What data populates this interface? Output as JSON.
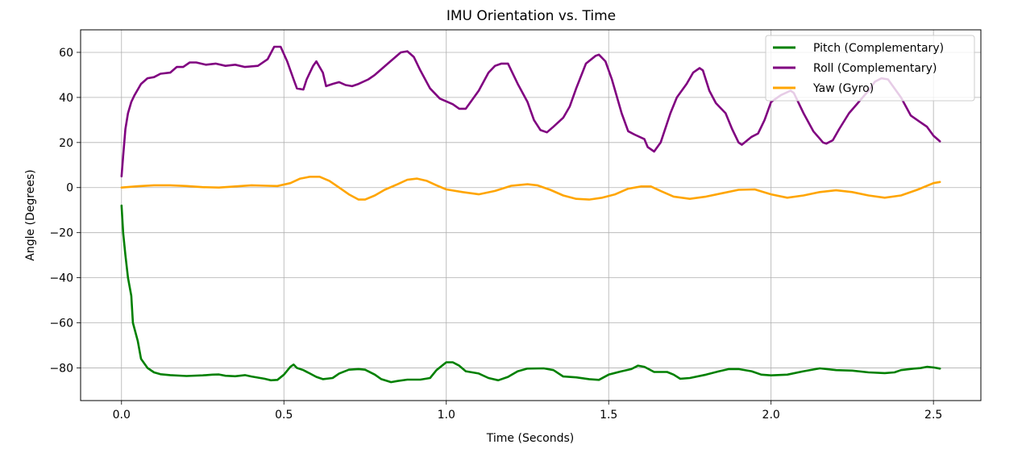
{
  "chart_data": {
    "type": "line",
    "title": "IMU Orientation vs. Time",
    "xlabel": "Time (Seconds)",
    "ylabel": "Angle (Degrees)",
    "xlim": [
      -0.126,
      2.646
    ],
    "ylim": [
      -94.5,
      70
    ],
    "xticks": [
      0.0,
      0.5,
      1.0,
      1.5,
      2.0,
      2.5
    ],
    "xtick_labels": [
      "0.0",
      "0.5",
      "1.0",
      "1.5",
      "2.0",
      "2.5"
    ],
    "yticks": [
      -80,
      -60,
      -40,
      -20,
      0,
      20,
      40,
      60
    ],
    "ytick_labels": [
      "−80",
      "−60",
      "−40",
      "−20",
      "0",
      "20",
      "40",
      "60"
    ],
    "grid": true,
    "legend_position": "top-right",
    "series": [
      {
        "name": "Pitch (Complementary)",
        "color": "#008000",
        "points": [
          [
            0.0,
            -8
          ],
          [
            0.005,
            -20
          ],
          [
            0.012,
            -30
          ],
          [
            0.02,
            -40
          ],
          [
            0.03,
            -48
          ],
          [
            0.035,
            -60
          ],
          [
            0.05,
            -68
          ],
          [
            0.06,
            -76
          ],
          [
            0.08,
            -80
          ],
          [
            0.1,
            -82
          ],
          [
            0.12,
            -82.8
          ],
          [
            0.15,
            -83.2
          ],
          [
            0.2,
            -83.6
          ],
          [
            0.25,
            -83.3
          ],
          [
            0.28,
            -83
          ],
          [
            0.3,
            -82.9
          ],
          [
            0.32,
            -83.5
          ],
          [
            0.35,
            -83.7
          ],
          [
            0.38,
            -83.2
          ],
          [
            0.4,
            -83.8
          ],
          [
            0.42,
            -84.3
          ],
          [
            0.44,
            -84.8
          ],
          [
            0.46,
            -85.5
          ],
          [
            0.48,
            -85.3
          ],
          [
            0.5,
            -83
          ],
          [
            0.52,
            -79.5
          ],
          [
            0.53,
            -78.5
          ],
          [
            0.54,
            -80
          ],
          [
            0.56,
            -81
          ],
          [
            0.58,
            -82.5
          ],
          [
            0.6,
            -84
          ],
          [
            0.62,
            -85
          ],
          [
            0.65,
            -84.5
          ],
          [
            0.67,
            -82.5
          ],
          [
            0.7,
            -80.8
          ],
          [
            0.73,
            -80.5
          ],
          [
            0.75,
            -80.8
          ],
          [
            0.78,
            -83
          ],
          [
            0.8,
            -85
          ],
          [
            0.83,
            -86.3
          ],
          [
            0.85,
            -85.8
          ],
          [
            0.88,
            -85.2
          ],
          [
            0.92,
            -85.2
          ],
          [
            0.95,
            -84.5
          ],
          [
            0.97,
            -81
          ],
          [
            1.0,
            -77.5
          ],
          [
            1.02,
            -77.5
          ],
          [
            1.04,
            -79
          ],
          [
            1.06,
            -81.5
          ],
          [
            1.1,
            -82.5
          ],
          [
            1.13,
            -84.5
          ],
          [
            1.16,
            -85.5
          ],
          [
            1.19,
            -84
          ],
          [
            1.22,
            -81.5
          ],
          [
            1.25,
            -80.3
          ],
          [
            1.3,
            -80.2
          ],
          [
            1.33,
            -81
          ],
          [
            1.36,
            -83.8
          ],
          [
            1.4,
            -84.2
          ],
          [
            1.44,
            -85
          ],
          [
            1.47,
            -85.3
          ],
          [
            1.5,
            -83
          ],
          [
            1.54,
            -81.5
          ],
          [
            1.57,
            -80.5
          ],
          [
            1.59,
            -79
          ],
          [
            1.61,
            -79.5
          ],
          [
            1.64,
            -81.8
          ],
          [
            1.68,
            -81.8
          ],
          [
            1.7,
            -83
          ],
          [
            1.72,
            -84.8
          ],
          [
            1.75,
            -84.5
          ],
          [
            1.8,
            -83
          ],
          [
            1.84,
            -81.5
          ],
          [
            1.87,
            -80.5
          ],
          [
            1.9,
            -80.5
          ],
          [
            1.94,
            -81.5
          ],
          [
            1.97,
            -83
          ],
          [
            2.0,
            -83.3
          ],
          [
            2.05,
            -83
          ],
          [
            2.1,
            -81.5
          ],
          [
            2.15,
            -80.2
          ],
          [
            2.2,
            -81
          ],
          [
            2.25,
            -81.2
          ],
          [
            2.3,
            -82
          ],
          [
            2.35,
            -82.3
          ],
          [
            2.38,
            -82
          ],
          [
            2.4,
            -81
          ],
          [
            2.44,
            -80.3
          ],
          [
            2.46,
            -80.1
          ],
          [
            2.48,
            -79.5
          ],
          [
            2.5,
            -79.8
          ],
          [
            2.52,
            -80.3
          ]
        ]
      },
      {
        "name": "Roll (Complementary)",
        "color": "#800080",
        "points": [
          [
            0.0,
            5
          ],
          [
            0.005,
            14
          ],
          [
            0.012,
            26
          ],
          [
            0.02,
            33
          ],
          [
            0.03,
            38
          ],
          [
            0.04,
            41
          ],
          [
            0.06,
            46
          ],
          [
            0.08,
            48.5
          ],
          [
            0.1,
            49
          ],
          [
            0.12,
            50.5
          ],
          [
            0.15,
            51
          ],
          [
            0.17,
            53.5
          ],
          [
            0.19,
            53.5
          ],
          [
            0.21,
            55.5
          ],
          [
            0.23,
            55.5
          ],
          [
            0.26,
            54.5
          ],
          [
            0.29,
            55
          ],
          [
            0.32,
            54
          ],
          [
            0.35,
            54.5
          ],
          [
            0.38,
            53.5
          ],
          [
            0.42,
            54
          ],
          [
            0.45,
            57
          ],
          [
            0.47,
            62.5
          ],
          [
            0.49,
            62.5
          ],
          [
            0.51,
            56
          ],
          [
            0.53,
            48
          ],
          [
            0.54,
            44
          ],
          [
            0.56,
            43.5
          ],
          [
            0.57,
            48
          ],
          [
            0.59,
            54
          ],
          [
            0.6,
            56
          ],
          [
            0.62,
            51
          ],
          [
            0.63,
            45
          ],
          [
            0.65,
            46
          ],
          [
            0.67,
            46.8
          ],
          [
            0.69,
            45.5
          ],
          [
            0.71,
            45
          ],
          [
            0.73,
            46
          ],
          [
            0.76,
            48
          ],
          [
            0.78,
            50
          ],
          [
            0.82,
            55
          ],
          [
            0.86,
            60
          ],
          [
            0.88,
            60.5
          ],
          [
            0.9,
            58
          ],
          [
            0.92,
            52
          ],
          [
            0.95,
            44
          ],
          [
            0.98,
            39.5
          ],
          [
            1.02,
            37
          ],
          [
            1.04,
            35
          ],
          [
            1.06,
            35
          ],
          [
            1.1,
            43
          ],
          [
            1.13,
            51
          ],
          [
            1.15,
            54
          ],
          [
            1.17,
            55
          ],
          [
            1.19,
            55
          ],
          [
            1.2,
            52
          ],
          [
            1.22,
            46
          ],
          [
            1.25,
            38
          ],
          [
            1.27,
            30
          ],
          [
            1.29,
            25.5
          ],
          [
            1.31,
            24.5
          ],
          [
            1.33,
            27
          ],
          [
            1.36,
            31
          ],
          [
            1.38,
            36
          ],
          [
            1.4,
            44
          ],
          [
            1.43,
            55
          ],
          [
            1.46,
            58.5
          ],
          [
            1.47,
            59
          ],
          [
            1.49,
            56
          ],
          [
            1.51,
            48
          ],
          [
            1.54,
            33
          ],
          [
            1.56,
            25
          ],
          [
            1.58,
            23.5
          ],
          [
            1.61,
            21.5
          ],
          [
            1.62,
            18
          ],
          [
            1.64,
            16
          ],
          [
            1.66,
            20
          ],
          [
            1.69,
            33
          ],
          [
            1.71,
            40
          ],
          [
            1.74,
            46
          ],
          [
            1.76,
            51
          ],
          [
            1.78,
            53
          ],
          [
            1.79,
            52
          ],
          [
            1.81,
            43
          ],
          [
            1.83,
            37.5
          ],
          [
            1.86,
            33
          ],
          [
            1.88,
            26
          ],
          [
            1.9,
            20
          ],
          [
            1.91,
            19
          ],
          [
            1.94,
            22.5
          ],
          [
            1.96,
            24
          ],
          [
            1.98,
            30
          ],
          [
            2.0,
            38
          ],
          [
            2.03,
            41
          ],
          [
            2.06,
            43
          ],
          [
            2.07,
            42
          ],
          [
            2.1,
            33
          ],
          [
            2.13,
            25
          ],
          [
            2.16,
            20
          ],
          [
            2.17,
            19.5
          ],
          [
            2.19,
            21
          ],
          [
            2.21,
            26
          ],
          [
            2.24,
            33
          ],
          [
            2.27,
            38
          ],
          [
            2.3,
            43
          ],
          [
            2.32,
            47
          ],
          [
            2.34,
            48.5
          ],
          [
            2.36,
            48
          ],
          [
            2.4,
            40
          ],
          [
            2.43,
            32
          ],
          [
            2.46,
            29
          ],
          [
            2.48,
            27
          ],
          [
            2.5,
            23
          ],
          [
            2.52,
            20.5
          ]
        ]
      },
      {
        "name": "Yaw (Gyro)",
        "color": "#ffa500",
        "points": [
          [
            0.0,
            0
          ],
          [
            0.05,
            0.6
          ],
          [
            0.1,
            1
          ],
          [
            0.15,
            1
          ],
          [
            0.2,
            0.7
          ],
          [
            0.25,
            0.2
          ],
          [
            0.3,
            0
          ],
          [
            0.35,
            0.5
          ],
          [
            0.4,
            1
          ],
          [
            0.45,
            0.8
          ],
          [
            0.48,
            0.7
          ],
          [
            0.52,
            2
          ],
          [
            0.55,
            4
          ],
          [
            0.58,
            4.8
          ],
          [
            0.61,
            4.8
          ],
          [
            0.64,
            3
          ],
          [
            0.67,
            0
          ],
          [
            0.7,
            -3
          ],
          [
            0.73,
            -5.3
          ],
          [
            0.75,
            -5.3
          ],
          [
            0.78,
            -3.5
          ],
          [
            0.81,
            -1
          ],
          [
            0.85,
            1.5
          ],
          [
            0.88,
            3.5
          ],
          [
            0.91,
            4
          ],
          [
            0.94,
            3
          ],
          [
            0.97,
            1
          ],
          [
            1.0,
            -0.8
          ],
          [
            1.05,
            -2
          ],
          [
            1.1,
            -3
          ],
          [
            1.15,
            -1.5
          ],
          [
            1.2,
            0.8
          ],
          [
            1.25,
            1.5
          ],
          [
            1.28,
            1
          ],
          [
            1.32,
            -1
          ],
          [
            1.36,
            -3.5
          ],
          [
            1.4,
            -5
          ],
          [
            1.44,
            -5.3
          ],
          [
            1.48,
            -4.5
          ],
          [
            1.52,
            -3
          ],
          [
            1.56,
            -0.5
          ],
          [
            1.6,
            0.5
          ],
          [
            1.63,
            0.5
          ],
          [
            1.66,
            -1.5
          ],
          [
            1.7,
            -4
          ],
          [
            1.75,
            -5
          ],
          [
            1.8,
            -4
          ],
          [
            1.85,
            -2.5
          ],
          [
            1.9,
            -1
          ],
          [
            1.95,
            -0.8
          ],
          [
            2.0,
            -3
          ],
          [
            2.05,
            -4.5
          ],
          [
            2.1,
            -3.5
          ],
          [
            2.15,
            -2
          ],
          [
            2.2,
            -1.2
          ],
          [
            2.25,
            -2
          ],
          [
            2.3,
            -3.5
          ],
          [
            2.35,
            -4.5
          ],
          [
            2.4,
            -3.5
          ],
          [
            2.45,
            -1
          ],
          [
            2.5,
            2
          ],
          [
            2.52,
            2.5
          ]
        ]
      }
    ]
  }
}
